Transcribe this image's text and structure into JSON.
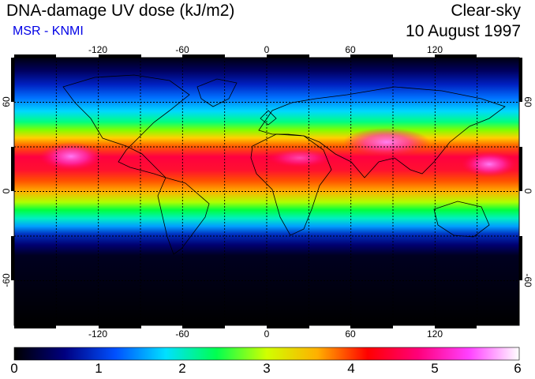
{
  "header": {
    "title": "DNA-damage UV dose (kJ/m2)",
    "subtitle": "MSR - KNMI",
    "sky": "Clear-sky",
    "date": "10 August 1997"
  },
  "map": {
    "lon_range": [
      -180,
      180
    ],
    "lat_range": [
      -90,
      90
    ],
    "lon_ticks": [
      "-120",
      "-60",
      "0",
      "60",
      "120"
    ],
    "lat_ticks": [
      "60",
      "0",
      "-60"
    ],
    "grid_lon_step": 30,
    "grid_lat_step": 30,
    "gridline_style": "dashed"
  },
  "colorbar": {
    "labels": [
      "0",
      "1",
      "2",
      "3",
      "4",
      "5",
      "6"
    ],
    "min": 0,
    "max": 6,
    "colors": [
      "#000000",
      "#000080",
      "#0050ff",
      "#00e0ff",
      "#00ff50",
      "#d0ff00",
      "#ffb000",
      "#ff0000",
      "#ff007a",
      "#ff40ff",
      "#ffffff"
    ]
  }
}
